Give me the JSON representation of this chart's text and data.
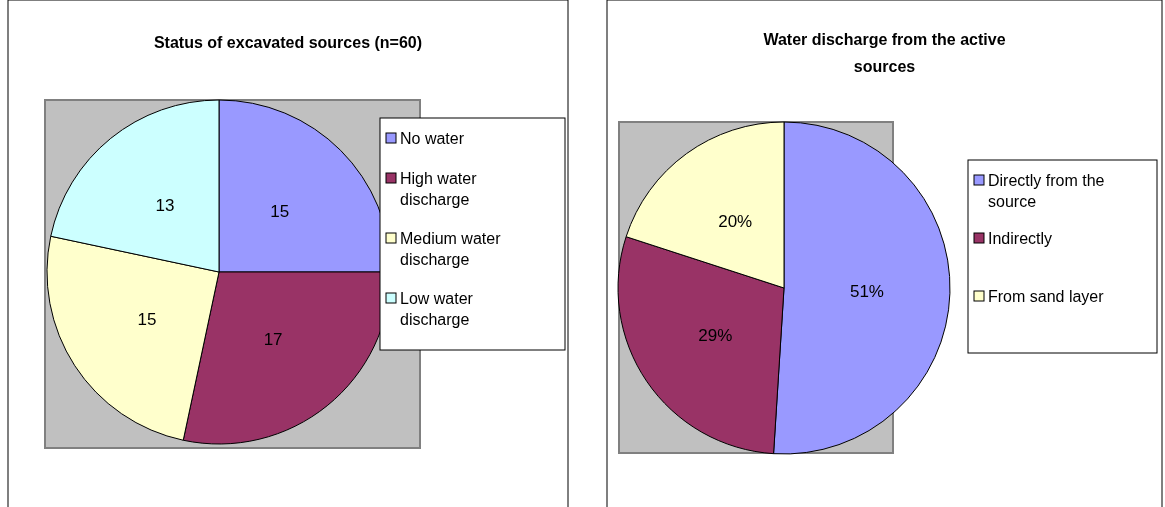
{
  "chart_data": [
    {
      "type": "pie",
      "title": "Status of excavated sources (n=60)",
      "categories": [
        "No water",
        "High water discharge",
        "Medium water discharge",
        "Low water discharge"
      ],
      "values": [
        15,
        17,
        15,
        13
      ],
      "colors": [
        "#9999ff",
        "#993366",
        "#ffffcc",
        "#ccffff"
      ],
      "data_labels": true,
      "legend": "right"
    },
    {
      "type": "pie",
      "title": "Water discharge from the active sources",
      "categories": [
        "Directly from the source",
        "Indirectly",
        "From sand layer"
      ],
      "values": [
        51,
        29,
        20
      ],
      "colors": [
        "#9999ff",
        "#993366",
        "#ffffcc"
      ],
      "value_labels": [
        "51%",
        "29%",
        "20%"
      ],
      "legend": "right"
    }
  ]
}
